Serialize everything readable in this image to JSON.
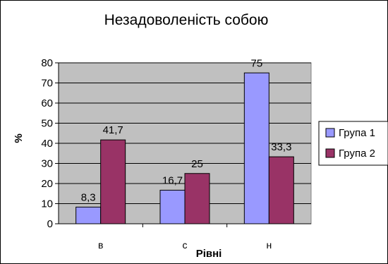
{
  "chart_data": {
    "type": "bar",
    "title": "Незадоволеність собою",
    "xlabel": "Рівні",
    "ylabel": "%",
    "categories": [
      "в",
      "с",
      "н"
    ],
    "series": [
      {
        "name": "Група 1",
        "values": [
          8.3,
          16.7,
          75
        ],
        "labels": [
          "8,3",
          "16,7",
          "75"
        ]
      },
      {
        "name": "Група 2",
        "values": [
          41.7,
          25,
          33.3
        ],
        "labels": [
          "41,7",
          "25",
          "33,3"
        ]
      }
    ],
    "ylim": [
      0,
      80
    ],
    "yticks": [
      0,
      10,
      20,
      30,
      40,
      50,
      60,
      70,
      80
    ],
    "grid": true,
    "legend_position": "right",
    "colors": {
      "series": [
        "#9999FF",
        "#993366"
      ],
      "plot_background": "#C0C0C0",
      "grid": "#000000"
    }
  }
}
